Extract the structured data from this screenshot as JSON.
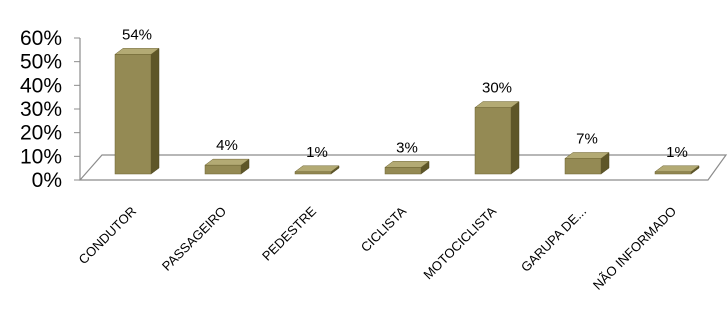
{
  "chart_data": {
    "type": "bar",
    "style": "3d-column",
    "categories": [
      "CONDUTOR",
      "PASSAGEIRO",
      "PEDESTRE",
      "CICLISTA",
      "MOTOCICLISTA",
      "GARUPA DE...",
      "NÃO INFORMADO"
    ],
    "values": [
      54,
      4,
      1,
      3,
      30,
      7,
      1
    ],
    "data_labels": [
      "54%",
      "4%",
      "1%",
      "3%",
      "30%",
      "7%",
      "1%"
    ],
    "y_ticks": [
      "0%",
      "10%",
      "20%",
      "30%",
      "40%",
      "50%",
      "60%"
    ],
    "ylim": [
      0,
      60
    ],
    "title": "",
    "xlabel": "",
    "ylabel": "",
    "grid": false,
    "legend": "none",
    "colors": {
      "bar_front": "#948A54",
      "bar_side": "#5E5628",
      "bar_top": "#B3AA74",
      "floor_line": "#8C8C8C",
      "axis_line": "#8C8C8C"
    }
  }
}
